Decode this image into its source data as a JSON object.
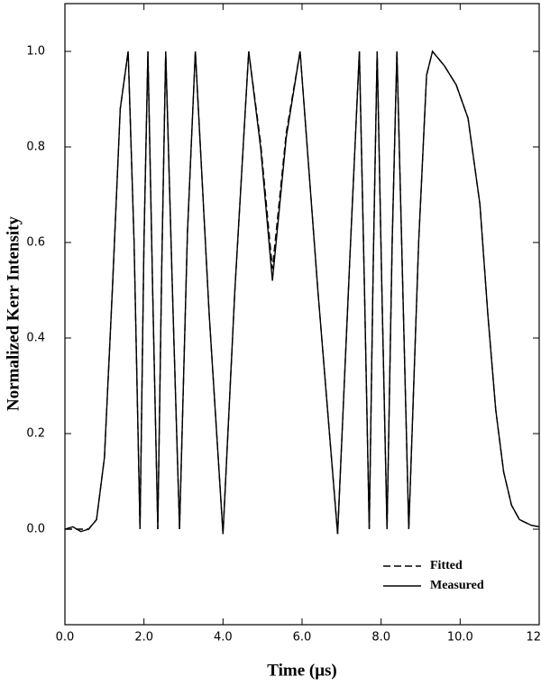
{
  "chart_data": {
    "type": "line",
    "xlabel": "Time (μs)",
    "ylabel": "Normalized Kerr Intensity",
    "x": [
      0.0,
      0.2,
      0.4,
      0.6,
      0.8,
      1.0,
      1.2,
      1.4,
      1.6,
      1.75,
      1.9,
      2.0,
      2.1,
      2.22,
      2.35,
      2.45,
      2.55,
      2.72,
      2.9,
      3.1,
      3.3,
      3.65,
      4.0,
      4.3,
      4.65,
      4.95,
      5.25,
      5.6,
      5.95,
      6.4,
      6.9,
      7.2,
      7.45,
      7.58,
      7.7,
      7.8,
      7.9,
      8.02,
      8.15,
      8.28,
      8.4,
      8.55,
      8.7,
      8.95,
      9.15,
      9.3,
      9.6,
      9.9,
      10.2,
      10.5,
      10.7,
      10.9,
      11.1,
      11.3,
      11.5,
      11.8,
      12.0
    ],
    "series": [
      {
        "name": "Fitted",
        "color": "#000000",
        "dash": true,
        "values": [
          0.0,
          0.0,
          0.0,
          0.0,
          0.02,
          0.15,
          0.5,
          0.88,
          1.0,
          0.6,
          0.0,
          0.6,
          1.0,
          0.5,
          0.0,
          0.55,
          1.0,
          0.5,
          0.0,
          0.62,
          1.0,
          0.45,
          -0.01,
          0.5,
          1.0,
          0.81,
          0.545,
          0.83,
          1.0,
          0.5,
          -0.01,
          0.55,
          1.0,
          0.5,
          0.0,
          0.55,
          1.0,
          0.5,
          0.0,
          0.6,
          1.0,
          0.5,
          0.0,
          0.6,
          0.95,
          1.0,
          0.97,
          0.93,
          0.86,
          0.68,
          0.45,
          0.25,
          0.12,
          0.05,
          0.02,
          0.008,
          0.005
        ]
      },
      {
        "name": "Measured",
        "color": "#000000",
        "dash": false,
        "values": [
          0.0,
          0.005,
          -0.005,
          0.0,
          0.02,
          0.15,
          0.5,
          0.88,
          1.0,
          0.6,
          0.0,
          0.6,
          1.0,
          0.5,
          0.0,
          0.55,
          1.0,
          0.5,
          0.0,
          0.62,
          1.0,
          0.45,
          -0.01,
          0.5,
          1.0,
          0.8,
          0.52,
          0.82,
          1.0,
          0.5,
          -0.01,
          0.55,
          1.0,
          0.5,
          0.0,
          0.55,
          1.0,
          0.5,
          0.0,
          0.6,
          1.0,
          0.5,
          0.0,
          0.6,
          0.95,
          1.0,
          0.97,
          0.93,
          0.86,
          0.68,
          0.45,
          0.25,
          0.12,
          0.05,
          0.02,
          0.008,
          0.005
        ]
      }
    ],
    "xlim": [
      0,
      12
    ],
    "xticks": [
      {
        "value": 0,
        "label": "0.0"
      },
      {
        "value": 2,
        "label": "2.0"
      },
      {
        "value": 4,
        "label": "4.0"
      },
      {
        "value": 6,
        "label": "6.0"
      },
      {
        "value": 8,
        "label": "8.0"
      },
      {
        "value": 10,
        "label": "10.0"
      },
      {
        "value": 12,
        "label": "12.0"
      }
    ],
    "ylim": [
      -0.2,
      1.1
    ],
    "yticks": [
      {
        "value": 0,
        "label": "0.0"
      },
      0.2,
      0.4,
      0.6,
      0.8,
      {
        "value": 1,
        "label": "1.0"
      }
    ],
    "grid": false,
    "legend": "lower right"
  }
}
